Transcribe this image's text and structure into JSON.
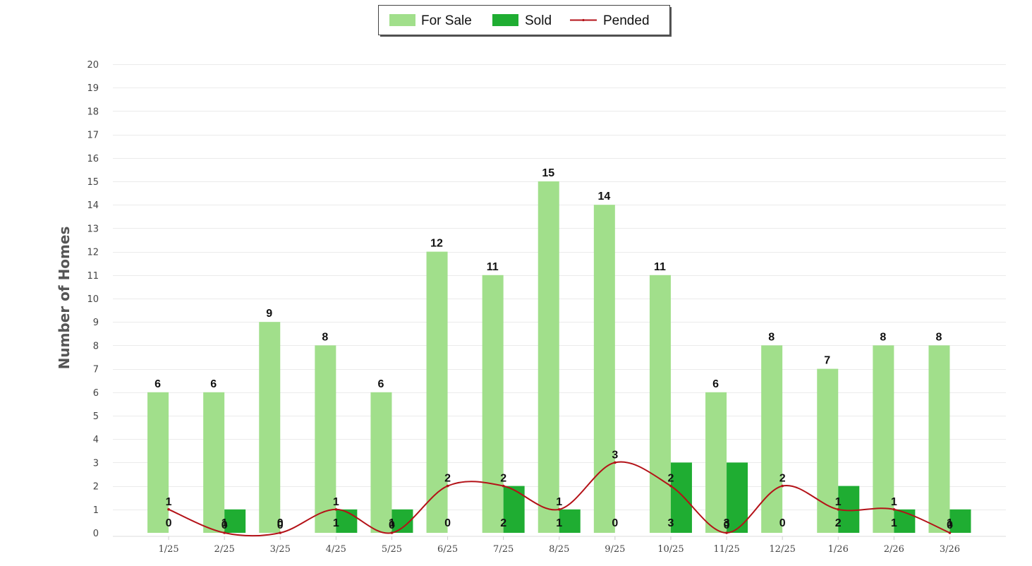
{
  "chart_data": {
    "type": "bar",
    "categories": [
      "1/25",
      "2/25",
      "3/25",
      "4/25",
      "5/25",
      "6/25",
      "7/25",
      "8/25",
      "9/25",
      "10/25",
      "11/25",
      "12/25",
      "1/26",
      "2/26",
      "3/26"
    ],
    "series": [
      {
        "name": "For Sale",
        "type": "bar",
        "color": "#a1df8b",
        "values": [
          6,
          6,
          9,
          8,
          6,
          12,
          11,
          15,
          14,
          11,
          6,
          8,
          7,
          8,
          8
        ]
      },
      {
        "name": "Sold",
        "type": "bar",
        "color": "#1fad32",
        "values": [
          0,
          1,
          0,
          1,
          1,
          0,
          2,
          1,
          0,
          3,
          3,
          0,
          2,
          1,
          1
        ]
      },
      {
        "name": "Pended",
        "type": "line",
        "color": "#b41218",
        "values": [
          1,
          0,
          0,
          1,
          0,
          2,
          2,
          1,
          3,
          2,
          0,
          2,
          1,
          1,
          0
        ]
      }
    ],
    "ylabel": "Number of Homes",
    "xlabel": "",
    "ylim": [
      0,
      20
    ],
    "yticks": [
      "0",
      "1",
      "2",
      "3",
      "4",
      "5",
      "6",
      "7",
      "8",
      "9",
      "10",
      "11",
      "12",
      "13",
      "14",
      "15",
      "16",
      "17",
      "18",
      "19",
      "20"
    ],
    "grid": true,
    "legend": "top-center"
  }
}
